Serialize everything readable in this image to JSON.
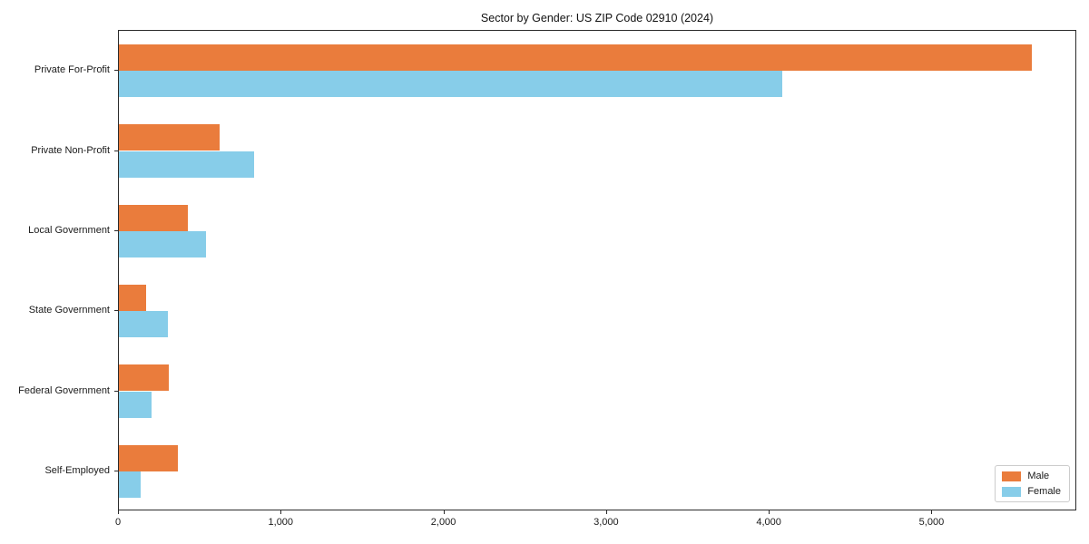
{
  "chart_data": {
    "type": "bar",
    "orientation": "horizontal",
    "title": "Sector by Gender: US ZIP Code 02910 (2024)",
    "categories": [
      "Private For-Profit",
      "Private Non-Profit",
      "Local Government",
      "State Government",
      "Federal Government",
      "Self-Employed"
    ],
    "series": [
      {
        "name": "Male",
        "color": "#ea7c3c",
        "values": [
          5610,
          620,
          425,
          170,
          305,
          365
        ]
      },
      {
        "name": "Female",
        "color": "#87cde9",
        "values": [
          4080,
          830,
          535,
          300,
          200,
          135
        ]
      }
    ],
    "xlabel": "",
    "ylabel": "",
    "xlim": [
      0,
      5890
    ],
    "xticks": [
      {
        "value": 0,
        "label": "0"
      },
      {
        "value": 1000,
        "label": "1,000"
      },
      {
        "value": 2000,
        "label": "2,000"
      },
      {
        "value": 3000,
        "label": "3,000"
      },
      {
        "value": 4000,
        "label": "4,000"
      },
      {
        "value": 5000,
        "label": "5,000"
      }
    ],
    "grid": false,
    "legend_position": "lower right",
    "legend": [
      "Male",
      "Female"
    ]
  },
  "colors": {
    "male": "#ea7c3c",
    "female": "#87cde9",
    "spine": "#2b2b2b",
    "background": "#ffffff"
  }
}
